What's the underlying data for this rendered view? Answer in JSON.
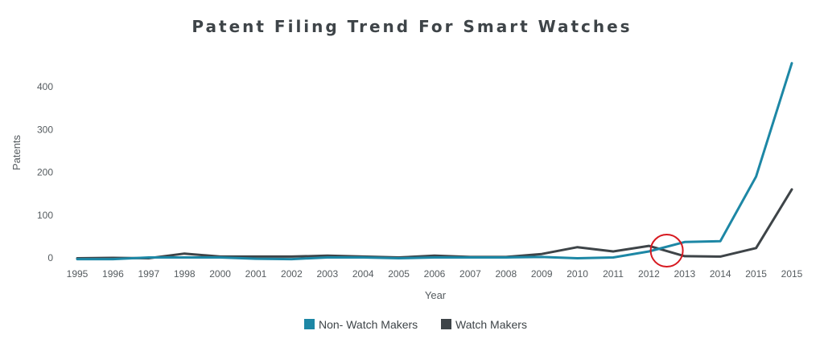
{
  "chart_data": {
    "type": "line",
    "title": "Patent Filing Trend For Smart Watches",
    "xlabel": "Year",
    "ylabel": "Patents",
    "x": [
      "1995",
      "1996",
      "1997",
      "1998",
      "2000",
      "2001",
      "2002",
      "2003",
      "2004",
      "2005",
      "2006",
      "2007",
      "2008",
      "2009",
      "2010",
      "2011",
      "2012",
      "2013",
      "2014",
      "2015",
      "2015"
    ],
    "yticks": [
      0,
      100,
      200,
      300,
      400
    ],
    "ylim": [
      -5,
      460
    ],
    "grid": false,
    "legend_position": "bottom",
    "series": [
      {
        "name": "Non- Watch Makers",
        "color": "#1d87a5",
        "values": [
          -3,
          -3,
          1,
          1,
          1,
          -2,
          -3,
          1,
          1,
          -1,
          1,
          1,
          1,
          2,
          -1,
          1,
          15,
          37,
          39,
          190,
          455
        ]
      },
      {
        "name": "Watch Makers",
        "color": "#3e4448",
        "values": [
          -1,
          0,
          -1,
          10,
          3,
          3,
          3,
          5,
          3,
          1,
          5,
          2,
          2,
          9,
          25,
          15,
          28,
          4,
          3,
          23,
          160
        ]
      }
    ],
    "annotations": [
      {
        "type": "circle",
        "color": "#d71920",
        "x_between": [
          "2012",
          "2013"
        ],
        "y": 15
      }
    ]
  }
}
